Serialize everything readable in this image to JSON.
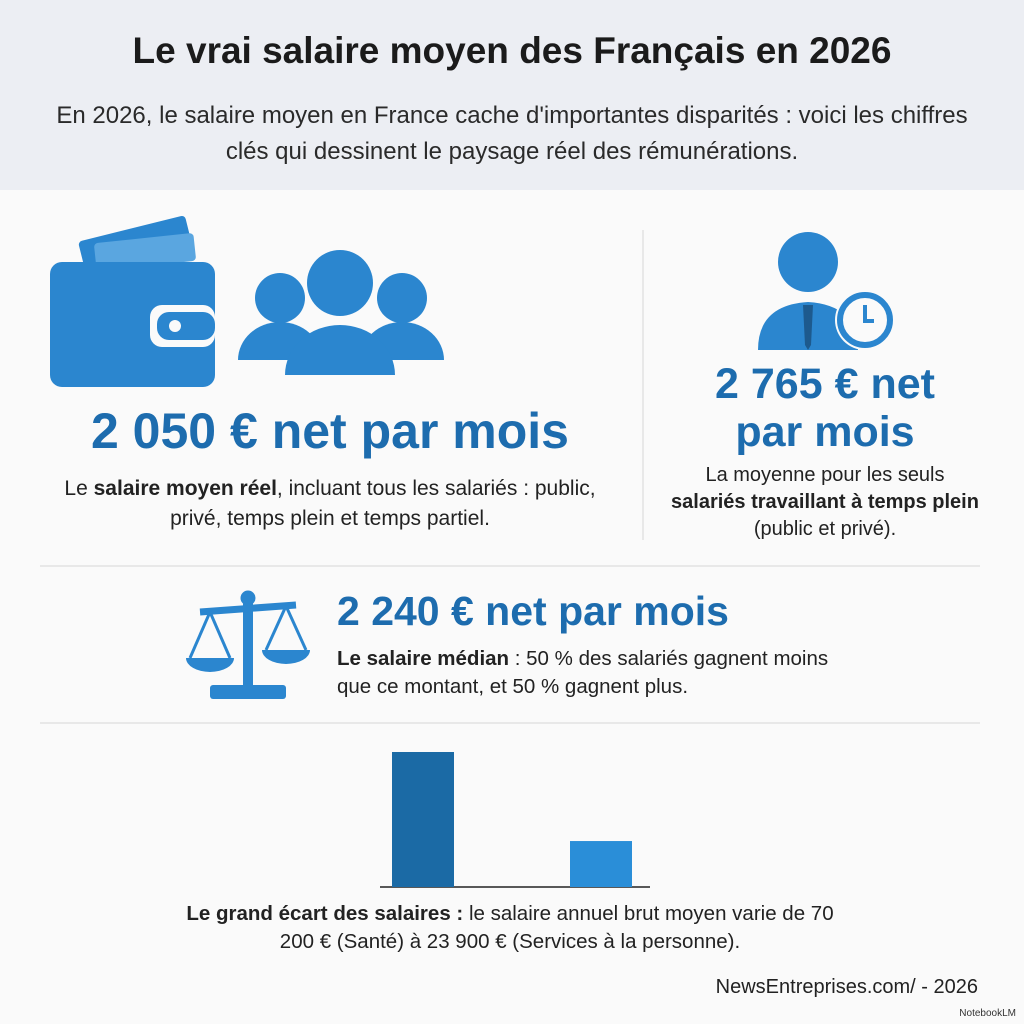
{
  "header": {
    "title": "Le vrai salaire moyen des Français en 2026",
    "subtitle": "En 2026, le salaire moyen en France cache d'importantes disparités : voici les chiffres clés qui dessinent le paysage réel des rémunérations."
  },
  "stats": [
    {
      "value": "2 050 € net par mois",
      "description": [
        {
          "text": "Le ",
          "bold": false
        },
        {
          "text": "salaire moyen réel",
          "bold": true
        },
        {
          "text": ", incluant tous les salariés : public, privé, temps plein et temps partiel.",
          "bold": false
        }
      ]
    },
    {
      "value": "2 765 € net par mois",
      "description": [
        {
          "text": "La moyenne pour les seuls ",
          "bold": false
        },
        {
          "text": "salariés travaillant à temps plein",
          "bold": true
        },
        {
          "text": " (public et privé).",
          "bold": false
        }
      ]
    },
    {
      "value": "2 240 € net par mois",
      "description": [
        {
          "text": "Le salaire médian",
          "bold": true
        },
        {
          "text": " : 50 % des salariés gagnent moins que ce montant, et 50 % gagnent plus.",
          "bold": false
        }
      ]
    }
  ],
  "chart": {
    "values": [
      70200,
      23900
    ],
    "colors": [
      "#1b6aa5",
      "#2a8ed8"
    ],
    "caption": [
      {
        "text": "Le grand écart des salaires :",
        "bold": true
      },
      {
        "text": " le salaire annuel brut moyen varie de 70 200 € (Santé) à 23 900 € (Services à la personne).",
        "bold": false
      }
    ]
  },
  "footer": {
    "source": "NewsEntreprises.com/ - 2026",
    "badge": "NotebookLM"
  }
}
